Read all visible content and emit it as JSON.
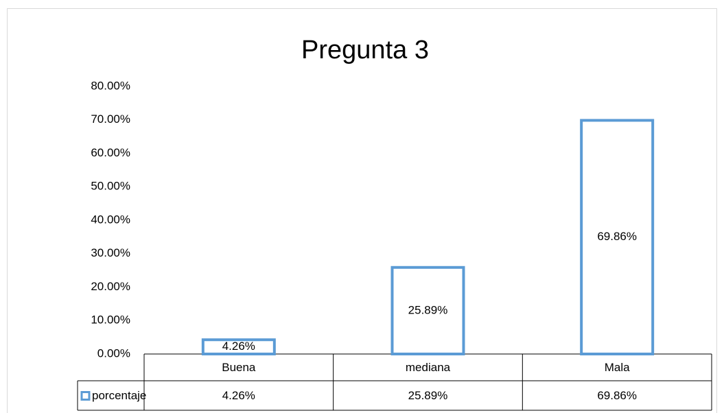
{
  "chart_data": {
    "type": "bar",
    "title": "Pregunta 3",
    "categories": [
      "Buena",
      "mediana",
      "Mala"
    ],
    "series": [
      {
        "name": "porcentaje",
        "color": "#5b9bd5",
        "values": [
          4.26,
          25.89,
          69.86
        ],
        "value_labels": [
          "4.26%",
          "25.89%",
          "69.86%"
        ]
      }
    ],
    "ylim": [
      0,
      80
    ],
    "yticks": [
      {
        "value": 0,
        "label": "0.00%"
      },
      {
        "value": 10,
        "label": "10.00%"
      },
      {
        "value": 20,
        "label": "20.00%"
      },
      {
        "value": 30,
        "label": "30.00%"
      },
      {
        "value": 40,
        "label": "40.00%"
      },
      {
        "value": 50,
        "label": "50.00%"
      },
      {
        "value": 60,
        "label": "60.00%"
      },
      {
        "value": 70,
        "label": "70.00%"
      },
      {
        "value": 80,
        "label": "80.00%"
      }
    ],
    "grid": false,
    "legend": "table"
  }
}
